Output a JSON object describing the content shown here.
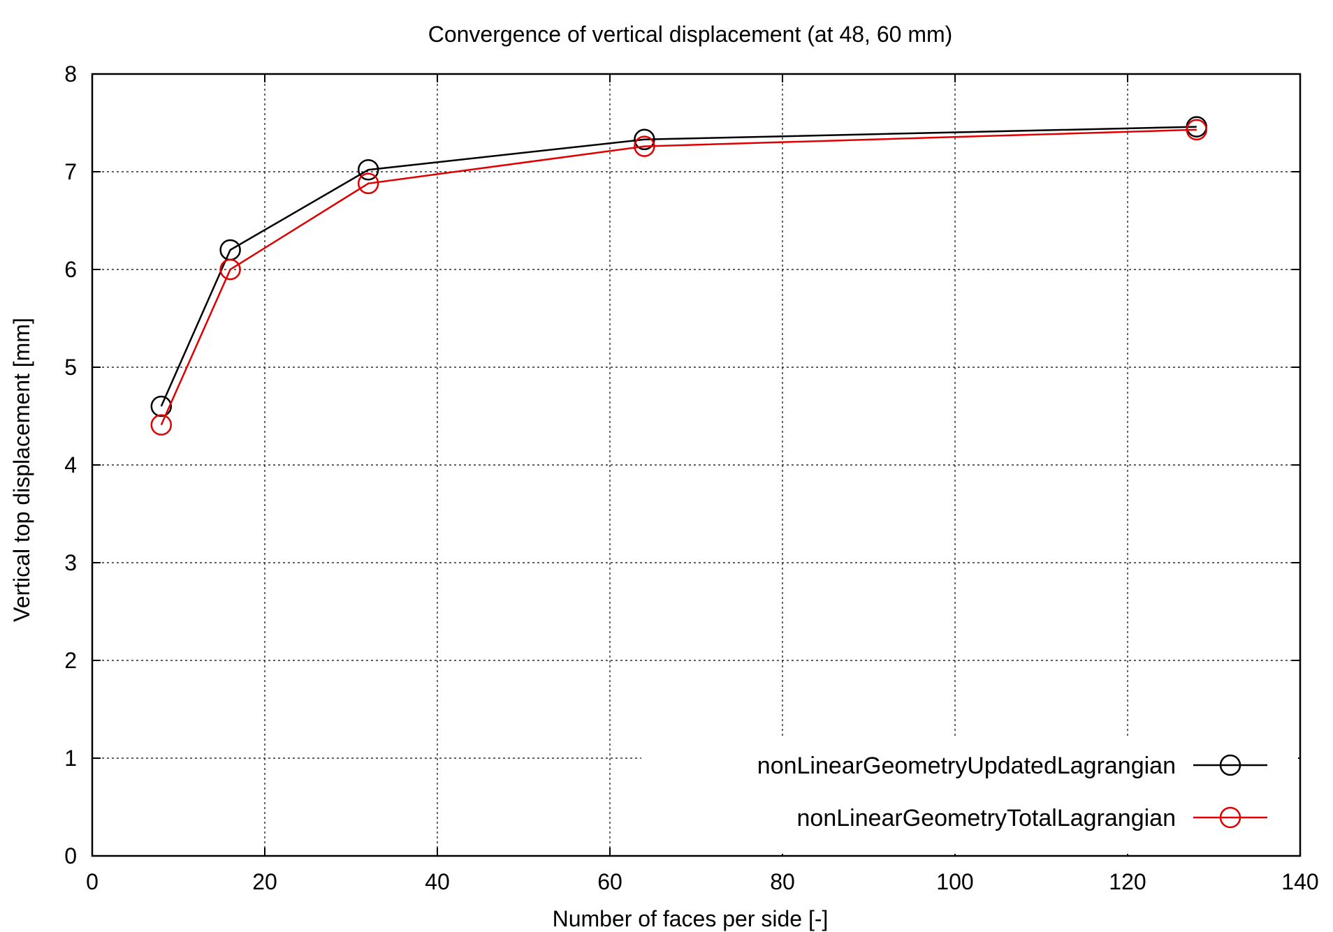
{
  "chart_data": {
    "type": "line",
    "title": "Convergence of vertical displacement (at 48, 60 mm)",
    "xlabel": "Number of faces per side [-]",
    "ylabel": "Vertical top displacement [mm]",
    "xlim": [
      0,
      140
    ],
    "ylim": [
      0,
      8
    ],
    "xticks": [
      "0",
      "20",
      "40",
      "60",
      "80",
      "100",
      "120",
      "140"
    ],
    "yticks": [
      "0",
      "1",
      "2",
      "3",
      "4",
      "5",
      "6",
      "7",
      "8"
    ],
    "grid": true,
    "legend_position": "bottom-right",
    "marker": "open-circle",
    "series": [
      {
        "name": "nonLinearGeometryUpdatedLagrangian",
        "color": "#000000",
        "x": [
          8,
          16,
          32,
          64,
          128
        ],
        "y": [
          4.6,
          6.2,
          7.02,
          7.33,
          7.46
        ]
      },
      {
        "name": "nonLinearGeometryTotalLagrangian",
        "color": "#e00000",
        "x": [
          8,
          16,
          32,
          64,
          128
        ],
        "y": [
          4.41,
          6.0,
          6.88,
          7.26,
          7.43
        ]
      }
    ]
  }
}
